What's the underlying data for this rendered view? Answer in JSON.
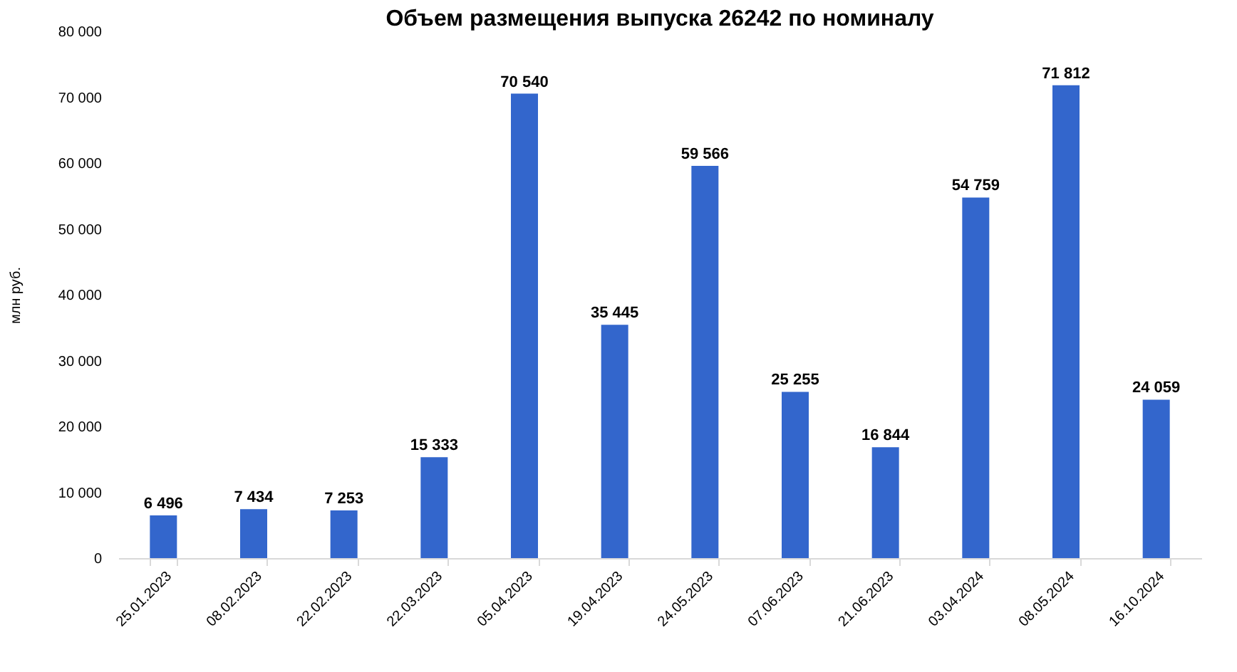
{
  "chart_data": {
    "type": "bar",
    "title": "Объем размещения выпуска 26242 по номиналу",
    "ylabel": "млн руб.",
    "categories": [
      "25.01.2023",
      "08.02.2023",
      "22.02.2023",
      "22.03.2023",
      "05.04.2023",
      "19.04.2023",
      "24.05.2023",
      "07.06.2023",
      "21.06.2023",
      "03.04.2024",
      "08.05.2024",
      "16.10.2024"
    ],
    "values": [
      6496,
      7434,
      7253,
      15333,
      70540,
      35445,
      59566,
      25255,
      16844,
      54759,
      71812,
      24059
    ],
    "value_labels": [
      "6 496",
      "7 434",
      "7 253",
      "15 333",
      "70 540",
      "35 445",
      "59 566",
      "25 255",
      "16 844",
      "54 759",
      "71 812",
      "24 059"
    ],
    "color": "#3366cc",
    "ylim": [
      0,
      80000
    ],
    "yticks": [
      0,
      {
        "value": 10000,
        "label": "10 000"
      },
      {
        "value": 20000,
        "label": "20 000"
      },
      {
        "value": 30000,
        "label": "30 000"
      },
      {
        "value": 40000,
        "label": "40 000"
      },
      {
        "value": 50000,
        "label": "50 000"
      },
      {
        "value": 60000,
        "label": "60 000"
      },
      {
        "value": 70000,
        "label": "70 000"
      },
      {
        "value": 80000,
        "label": "80 000"
      }
    ],
    "grid": false
  }
}
